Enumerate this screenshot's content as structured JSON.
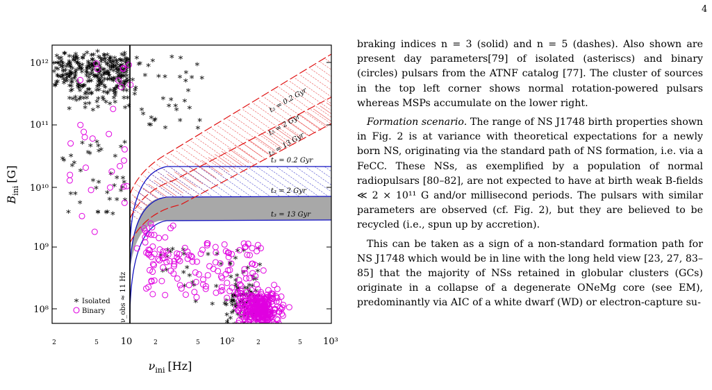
{
  "page_number": "4",
  "figure": {
    "y_axis_label": "B",
    "y_axis_sub": "ini",
    "y_axis_unit": "[G]",
    "x_axis_label": "ν",
    "x_axis_sub": "ini",
    "x_axis_unit": "[Hz]",
    "x_ticks": [
      "2",
      "5",
      "10",
      "2",
      "5",
      "10²",
      "2",
      "5",
      "10³"
    ],
    "y_ticks": [
      "10¹²",
      "10¹¹",
      "10¹⁰",
      "10⁹",
      "10⁸"
    ],
    "vline_label": "ν_obs ≈ 11 Hz",
    "legend": {
      "isolated": "Isolated",
      "binary": "Binary"
    },
    "curve_labels": {
      "t5_02": "t₅ = 0.2 Gyr",
      "t5_2": "t₅ = 2 Gyr",
      "t5_13": "t₅ = 13 Gyr",
      "t3_02": "t₃ = 0.2 Gyr",
      "t3_2": "t₃ = 2 Gyr",
      "t3_13": "t₃ = 13 Gyr"
    },
    "colors": {
      "isolated": "#000000",
      "binary": "#e000e0",
      "red": "#e01010",
      "blue": "#1010c0",
      "grey": "#a8a8a8"
    }
  },
  "text": {
    "p1": "braking indices n = 3 (solid) and n = 5 (dashes). Also shown are present day parameters[79] of isolated (asteriscs) and binary (circles) pulsars from the ATNF catalog [77]. The cluster of sources in the top left corner shows normal rotation-powered pulsars whereas MSPs accumulate on the lower right.",
    "p2_head": "Formation scenario.",
    "p2_body": "The range of NS J1748 birth properties shown in Fig. 2 is at variance with theoretical expectations for a newly born NS, originating via the standard path of NS formation, i.e. via a FeCC. These NSs, as exemplified by a population of normal radiopulsars [80–82], are not expected to have at birth weak B-fields ≪ 2 × 10¹¹ G and/or millisecond periods. The pulsars with similar parameters are observed (cf. Fig. 2), but they are believed to be recycled (i.e., spun up by accretion).",
    "p3": "This can be taken as a sign of a non-standard formation path for NS J1748 which would be in line with the long held view [23, 27, 83–85] that the majority of NSs retained in globular clusters (GCs) originate in a collapse of a degenerate ONeMg core (see EM), predominantly via AIC of a white dwarf (WD) or electron-capture su-"
  }
}
